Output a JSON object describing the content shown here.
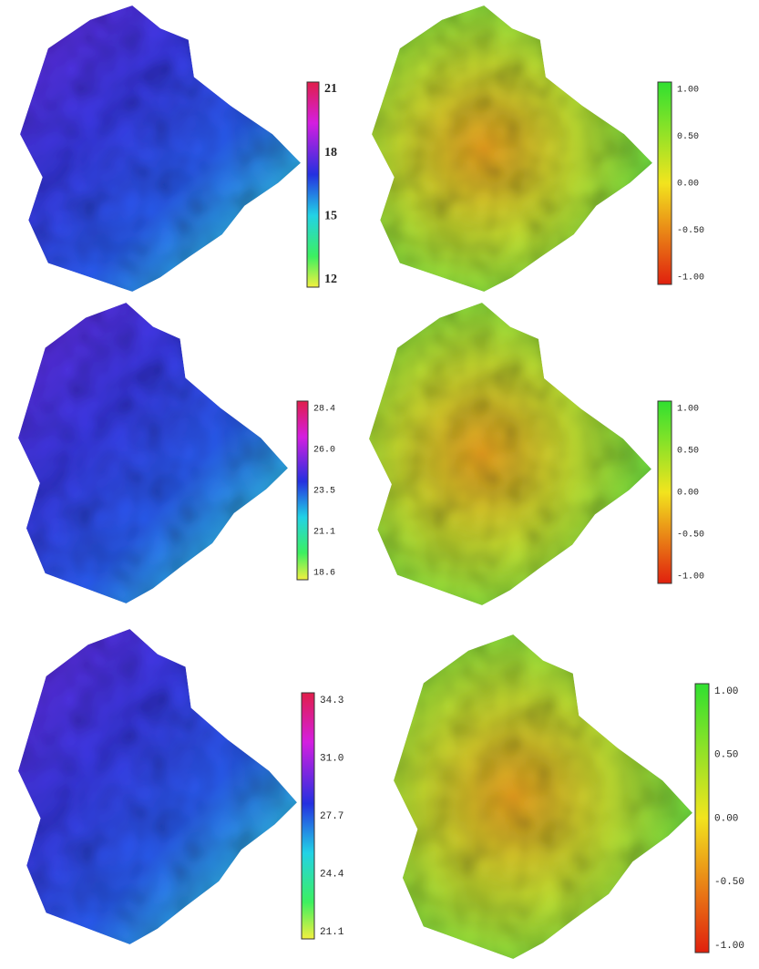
{
  "panels": [
    {
      "colorbar": {
        "labels": [
          "21",
          "18",
          "15",
          "12"
        ]
      }
    },
    {
      "colorbar": {
        "labels": [
          "1.00",
          "0.50",
          "0.00",
          "-0.50",
          "-1.00"
        ]
      }
    },
    {
      "colorbar": {
        "labels": [
          "28.4",
          "26.0",
          "23.5",
          "21.1",
          "18.6"
        ]
      }
    },
    {
      "colorbar": {
        "labels": [
          "1.00",
          "0.50",
          "0.00",
          "-0.50",
          "-1.00"
        ]
      }
    },
    {
      "colorbar": {
        "labels": [
          "34.3",
          "31.0",
          "27.7",
          "24.4",
          "21.1"
        ]
      }
    },
    {
      "colorbar": {
        "labels": [
          "1.00",
          "0.50",
          "0.00",
          "-0.50",
          "-1.00"
        ]
      }
    }
  ]
}
